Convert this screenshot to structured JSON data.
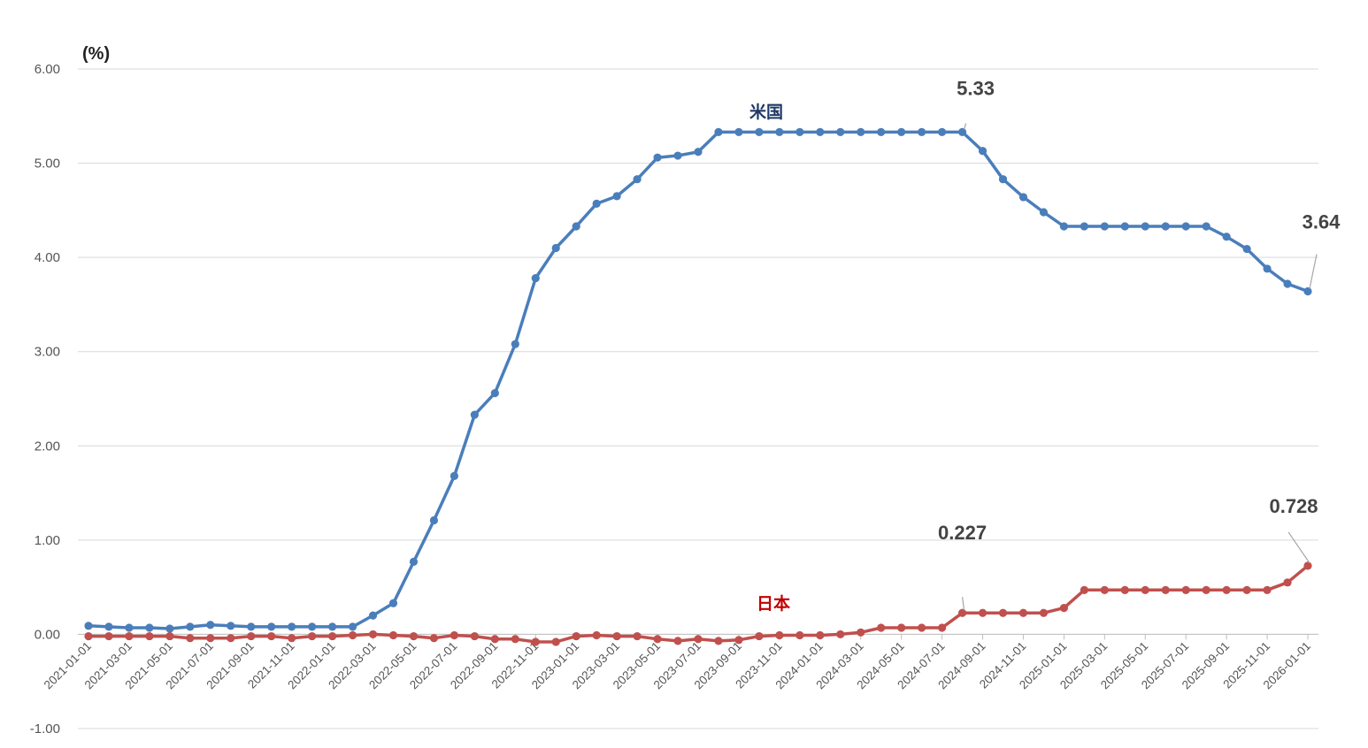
{
  "chart_data": {
    "type": "line",
    "unit_label": "(%)",
    "ylim": [
      -1.0,
      6.0
    ],
    "yticks": [
      "6.00",
      "5.00",
      "4.00",
      "3.00",
      "2.00",
      "1.00",
      "0.00",
      "-1.00"
    ],
    "ytick_values": [
      6,
      5,
      4,
      3,
      2,
      1,
      0,
      -1
    ],
    "grid": true,
    "x": [
      "2021-01-01",
      "2021-02-01",
      "2021-03-01",
      "2021-04-01",
      "2021-05-01",
      "2021-06-01",
      "2021-07-01",
      "2021-08-01",
      "2021-09-01",
      "2021-10-01",
      "2021-11-01",
      "2021-12-01",
      "2022-01-01",
      "2022-02-01",
      "2022-03-01",
      "2022-04-01",
      "2022-05-01",
      "2022-06-01",
      "2022-07-01",
      "2022-08-01",
      "2022-09-01",
      "2022-10-01",
      "2022-11-01",
      "2022-12-01",
      "2023-01-01",
      "2023-02-01",
      "2023-03-01",
      "2023-04-01",
      "2023-05-01",
      "2023-06-01",
      "2023-07-01",
      "2023-08-01",
      "2023-09-01",
      "2023-10-01",
      "2023-11-01",
      "2023-12-01",
      "2024-01-01",
      "2024-02-01",
      "2024-03-01",
      "2024-04-01",
      "2024-05-01",
      "2024-06-01",
      "2024-07-01",
      "2024-08-01",
      "2024-09-01",
      "2024-10-01",
      "2024-11-01",
      "2024-12-01",
      "2025-01-01",
      "2025-02-01",
      "2025-03-01",
      "2025-04-01",
      "2025-05-01",
      "2025-06-01",
      "2025-07-01",
      "2025-08-01",
      "2025-09-01",
      "2025-10-01",
      "2025-11-01",
      "2025-12-01",
      "2026-01-01"
    ],
    "xtick_labels": [
      "2021-01-01",
      "2021-03-01",
      "2021-05-01",
      "2021-07-01",
      "2021-09-01",
      "2021-11-01",
      "2022-01-01",
      "2022-03-01",
      "2022-05-01",
      "2022-07-01",
      "2022-09-01",
      "2022-11-01",
      "2023-01-01",
      "2023-03-01",
      "2023-05-01",
      "2023-07-01",
      "2023-09-01",
      "2023-11-01",
      "2024-01-01",
      "2024-03-01",
      "2024-05-01",
      "2024-07-01",
      "2024-09-01",
      "2024-11-01",
      "2025-01-01",
      "2025-03-01",
      "2025-05-01",
      "2025-07-01",
      "2025-09-01",
      "2025-11-01",
      "2026-01-01"
    ],
    "series": [
      {
        "name": "米国",
        "color": "#4a7ebb",
        "values": [
          0.09,
          0.08,
          0.07,
          0.07,
          0.06,
          0.08,
          0.1,
          0.09,
          0.08,
          0.08,
          0.08,
          0.08,
          0.08,
          0.08,
          0.2,
          0.33,
          0.77,
          1.21,
          1.68,
          2.33,
          2.56,
          3.08,
          3.78,
          4.1,
          4.33,
          4.57,
          4.65,
          4.83,
          5.06,
          5.08,
          5.12,
          5.33,
          5.33,
          5.33,
          5.33,
          5.33,
          5.33,
          5.33,
          5.33,
          5.33,
          5.33,
          5.33,
          5.33,
          5.33,
          5.13,
          4.83,
          4.64,
          4.48,
          4.33,
          4.33,
          4.33,
          4.33,
          4.33,
          4.33,
          4.33,
          4.33,
          4.22,
          4.09,
          3.88,
          3.72,
          3.64
        ],
        "annotations": [
          {
            "index": 43,
            "text": "5.33"
          },
          {
            "index": 60,
            "text": "3.64"
          }
        ]
      },
      {
        "name": "日本",
        "color": "#c0504d",
        "values": [
          -0.02,
          -0.02,
          -0.02,
          -0.02,
          -0.02,
          -0.04,
          -0.04,
          -0.04,
          -0.02,
          -0.02,
          -0.04,
          -0.02,
          -0.02,
          -0.01,
          0.0,
          -0.01,
          -0.02,
          -0.04,
          -0.01,
          -0.02,
          -0.05,
          -0.05,
          -0.08,
          -0.08,
          -0.02,
          -0.01,
          -0.02,
          -0.02,
          -0.05,
          -0.07,
          -0.05,
          -0.07,
          -0.06,
          -0.02,
          -0.01,
          -0.01,
          -0.01,
          0.0,
          0.02,
          0.07,
          0.07,
          0.07,
          0.07,
          0.227,
          0.227,
          0.227,
          0.227,
          0.227,
          0.28,
          0.47,
          0.47,
          0.47,
          0.47,
          0.47,
          0.47,
          0.47,
          0.47,
          0.47,
          0.47,
          0.55,
          0.728
        ],
        "annotations": [
          {
            "index": 43,
            "text": "0.227"
          },
          {
            "index": 60,
            "text": "0.728"
          }
        ]
      }
    ]
  }
}
